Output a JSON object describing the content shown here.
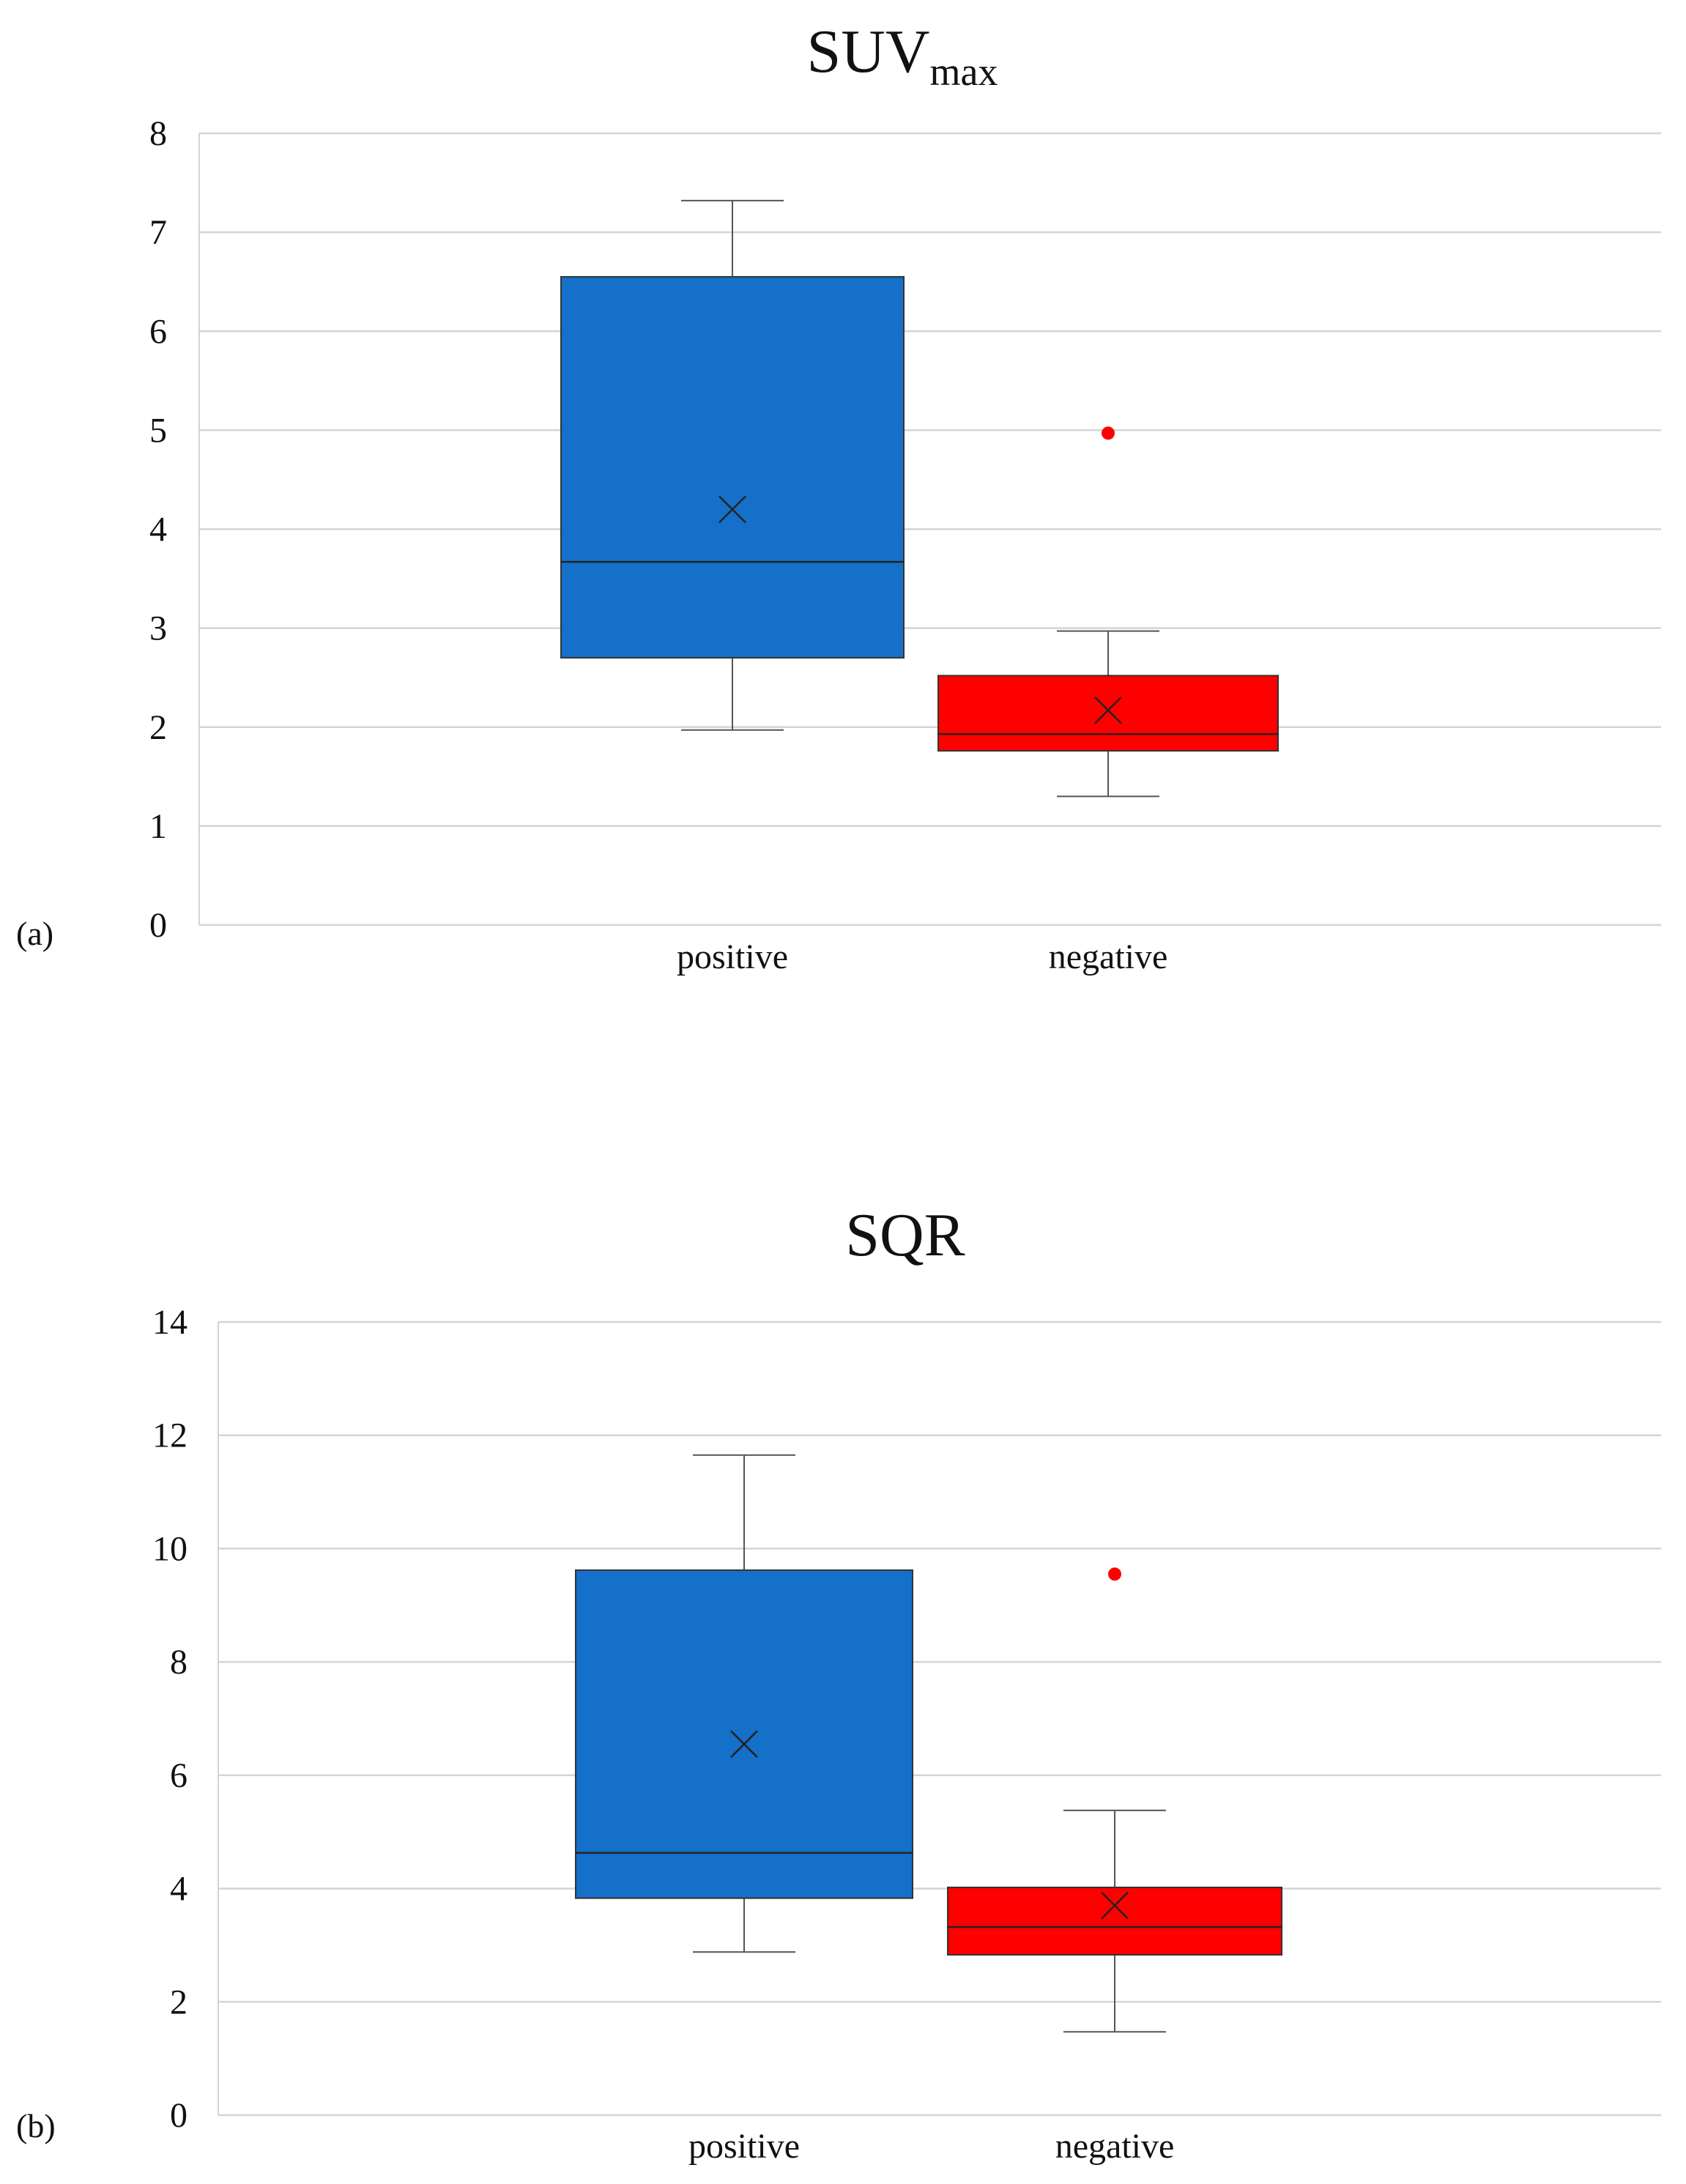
{
  "chart_data": [
    {
      "type": "box",
      "panel_label": "(a)",
      "title": "SUV",
      "title_subscript": "max",
      "categories": [
        "positive",
        "negative"
      ],
      "ylim": [
        0,
        8
      ],
      "yticks": [
        0,
        1,
        2,
        3,
        4,
        5,
        6,
        7,
        8
      ],
      "grid": true,
      "series": [
        {
          "category": "positive",
          "color": "#1470C8",
          "whisker_low": 1.97,
          "q1": 2.7,
          "median": 3.67,
          "q3": 6.55,
          "whisker_high": 7.32,
          "mean": 4.2,
          "outliers": []
        },
        {
          "category": "negative",
          "color": "#FF0000",
          "whisker_low": 1.3,
          "q1": 1.76,
          "median": 1.93,
          "q3": 2.52,
          "whisker_high": 2.97,
          "mean": 2.17,
          "outliers": [
            4.97
          ]
        }
      ]
    },
    {
      "type": "box",
      "panel_label": "(b)",
      "title": "SQR",
      "title_subscript": "",
      "categories": [
        "positive",
        "negative"
      ],
      "ylim": [
        0,
        14
      ],
      "yticks": [
        0,
        2,
        4,
        6,
        8,
        10,
        12,
        14
      ],
      "grid": true,
      "series": [
        {
          "category": "positive",
          "color": "#1470C8",
          "whisker_low": 2.88,
          "q1": 3.83,
          "median": 4.63,
          "q3": 9.62,
          "whisker_high": 11.65,
          "mean": 6.55,
          "outliers": []
        },
        {
          "category": "negative",
          "color": "#FF0000",
          "whisker_low": 1.47,
          "q1": 2.83,
          "median": 3.32,
          "q3": 4.02,
          "whisker_high": 5.38,
          "mean": 3.7,
          "outliers": [
            9.55
          ]
        }
      ]
    }
  ]
}
